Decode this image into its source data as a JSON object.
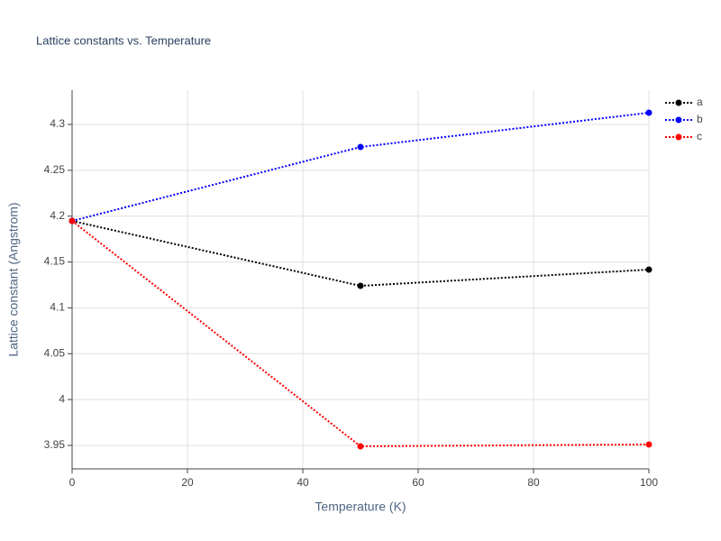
{
  "chart_data": {
    "type": "line",
    "title": "Lattice constants vs. Temperature",
    "x_label": "Temperature (K)",
    "y_label": "Lattice constant (Angstrom)",
    "x": [
      0,
      50,
      100
    ],
    "series": [
      {
        "name": "a",
        "color": "#000000",
        "values": [
          4.1948,
          4.124,
          4.1417
        ]
      },
      {
        "name": "b",
        "color": "#0000ff",
        "values": [
          4.1948,
          4.2754,
          4.3128
        ]
      },
      {
        "name": "c",
        "color": "#ff0000",
        "values": [
          4.1948,
          3.949,
          3.951
        ]
      }
    ],
    "xlim": [
      0,
      100
    ],
    "xticks": [
      0,
      20,
      40,
      60,
      80,
      100
    ],
    "ylim": [
      3.9244,
      4.3374
    ],
    "yticks": [
      3.95,
      4,
      4.05,
      4.1,
      4.15,
      4.2,
      4.25,
      4.3
    ],
    "grid": true,
    "legend": "top-right"
  }
}
